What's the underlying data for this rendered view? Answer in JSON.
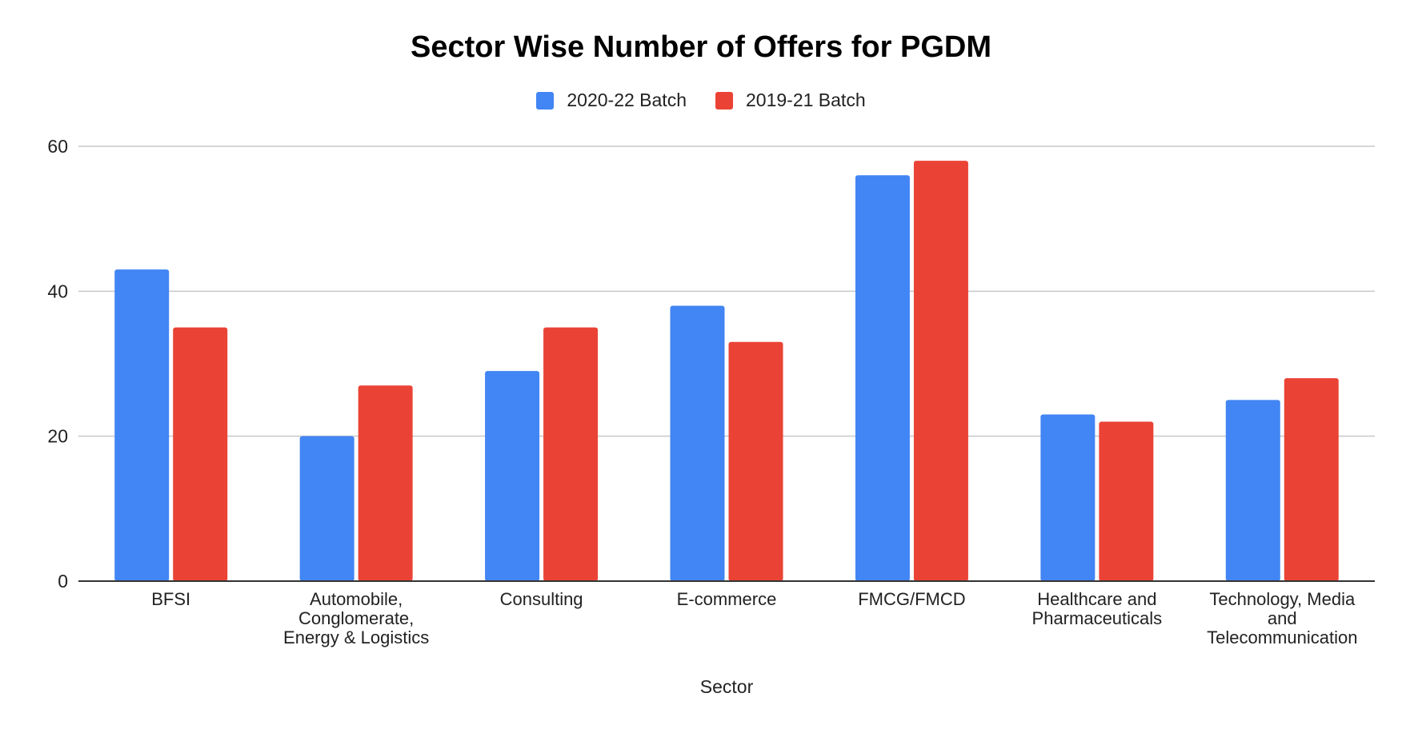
{
  "chart_data": {
    "type": "bar",
    "title": "Sector Wise Number of Offers for PGDM",
    "xlabel": "Sector",
    "ylabel": "",
    "ylim": [
      0,
      60
    ],
    "yticks": [
      0,
      20,
      40,
      60
    ],
    "grid": true,
    "legend_position": "top-center",
    "categories": [
      [
        "BFSI"
      ],
      [
        "Automobile,",
        "Conglomerate,",
        "Energy & Logistics"
      ],
      [
        "Consulting"
      ],
      [
        "E-commerce"
      ],
      [
        "FMCG/FMCD"
      ],
      [
        "Healthcare and",
        "Pharmaceuticals"
      ],
      [
        "Technology, Media",
        "and",
        "Telecommunication"
      ]
    ],
    "series": [
      {
        "name": "2020-22 Batch",
        "color": "#4285f4",
        "values": [
          43,
          20,
          29,
          38,
          56,
          23,
          25
        ]
      },
      {
        "name": "2019-21 Batch",
        "color": "#ea4335",
        "values": [
          35,
          27,
          35,
          33,
          58,
          22,
          28
        ]
      }
    ]
  }
}
